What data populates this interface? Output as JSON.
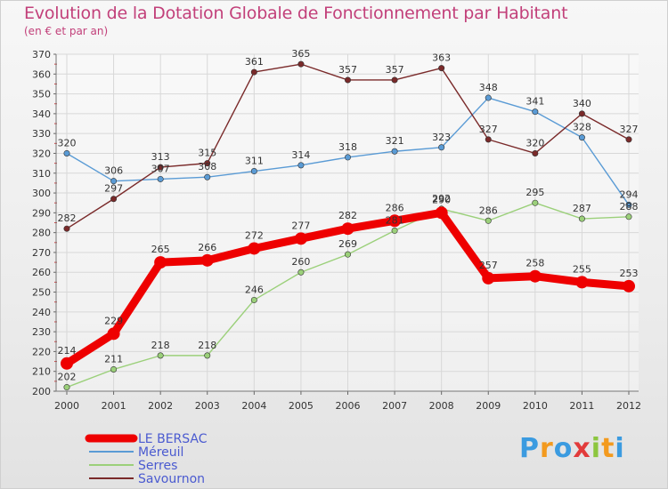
{
  "title": "Evolution de la Dotation Globale de Fonctionnement par Habitant",
  "subtitle": "(en € et par an)",
  "logo": {
    "letters": [
      "P",
      "r",
      "o",
      "x",
      "i",
      "t",
      "i"
    ],
    "colors": [
      "#3b9be0",
      "#f39a1e",
      "#3b9be0",
      "#e23b3b",
      "#8cc63f",
      "#f39a1e",
      "#3b9be0"
    ]
  },
  "chart_data": {
    "type": "line",
    "title": "Evolution de la Dotation Globale de Fonctionnement par Habitant",
    "subtitle": "(en € et par an)",
    "xlabel": "",
    "ylabel": "",
    "x": [
      "2000",
      "2001",
      "2002",
      "2003",
      "2004",
      "2005",
      "2006",
      "2007",
      "2008",
      "2009",
      "2010",
      "2011",
      "2012"
    ],
    "ylim": [
      200,
      370
    ],
    "yticks": [
      200,
      210,
      220,
      230,
      240,
      250,
      260,
      270,
      280,
      290,
      300,
      310,
      320,
      330,
      340,
      350,
      360,
      370
    ],
    "grid": true,
    "legend_position": "bottom-left",
    "series": [
      {
        "name": "LE BERSAC",
        "color": "#ee0000",
        "thick": true,
        "values": [
          214,
          229,
          265,
          266,
          272,
          277,
          282,
          286,
          290,
          257,
          258,
          255,
          253
        ]
      },
      {
        "name": "Méreuil",
        "color": "#5a9bd5",
        "thick": false,
        "values": [
          320,
          306,
          307,
          308,
          311,
          314,
          318,
          321,
          323,
          348,
          341,
          328,
          294
        ]
      },
      {
        "name": "Serres",
        "color": "#9bd07a",
        "thick": false,
        "values": [
          202,
          211,
          218,
          218,
          246,
          260,
          269,
          281,
          292,
          286,
          295,
          287,
          288
        ]
      },
      {
        "name": "Savournon",
        "color": "#7a2a2a",
        "thick": false,
        "values": [
          282,
          297,
          313,
          315,
          361,
          365,
          357,
          357,
          363,
          327,
          320,
          340,
          327
        ]
      }
    ]
  }
}
